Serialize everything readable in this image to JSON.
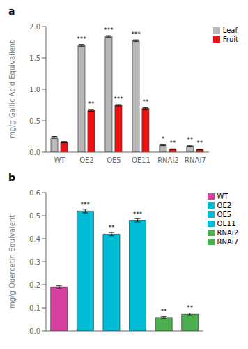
{
  "chart_data": [
    {
      "type": "bar",
      "title": "a",
      "categories": [
        "WT",
        "OE2",
        "OE5",
        "OE11",
        "RNAi2",
        "RNAi7"
      ],
      "ylabel": "mg/g Gallic Acid Equivallent",
      "ylim": [
        0,
        2.0
      ],
      "yticks": [
        {
          "value": 0,
          "label": "0.0"
        },
        0.5,
        {
          "value": 1,
          "label": "1.0"
        },
        1.5,
        {
          "value": 2,
          "label": "2.0"
        }
      ],
      "legend": "upper right",
      "series": [
        {
          "name": "Leaf",
          "color": "#b8b8b8",
          "values": [
            0.235,
            1.7,
            1.84,
            1.775,
            0.115,
            0.095
          ],
          "errors": [
            0.015,
            0.015,
            0.015,
            0.012,
            0.01,
            0.008
          ],
          "stars": [
            null,
            "***",
            "***",
            "***",
            "*",
            "**"
          ]
        },
        {
          "name": "Fruit",
          "color": "#ee1111",
          "values": [
            0.16,
            0.665,
            0.745,
            0.695,
            0.048,
            0.042
          ],
          "errors": [
            0.01,
            0.015,
            0.012,
            0.01,
            0.005,
            0.005
          ],
          "stars": [
            null,
            "**",
            "***",
            "**",
            "**",
            "**"
          ]
        }
      ]
    },
    {
      "type": "bar",
      "title": "b",
      "categories": [
        "WT",
        "OE2",
        "OE5",
        "OE11",
        "RNAi2",
        "RNAi7"
      ],
      "values": [
        0.19,
        0.52,
        0.42,
        0.48,
        0.058,
        0.072
      ],
      "errors": [
        0.005,
        0.008,
        0.007,
        0.007,
        0.004,
        0.005
      ],
      "stars": [
        null,
        "***",
        "**",
        "***",
        "**",
        "**"
      ],
      "colors": [
        "#d63fa0",
        "#00bcd4",
        "#00bcd4",
        "#00bcd4",
        "#4caf50",
        "#4caf50"
      ],
      "ylabel": "mg/g Quercetin Equivalent",
      "ylim": [
        0,
        0.6
      ],
      "yticks": [
        {
          "value": 0,
          "label": "0.0"
        },
        0.1,
        0.2,
        0.3,
        0.4,
        0.5,
        0.6
      ],
      "legend": "upper right",
      "tick_labels": "y"
    }
  ]
}
